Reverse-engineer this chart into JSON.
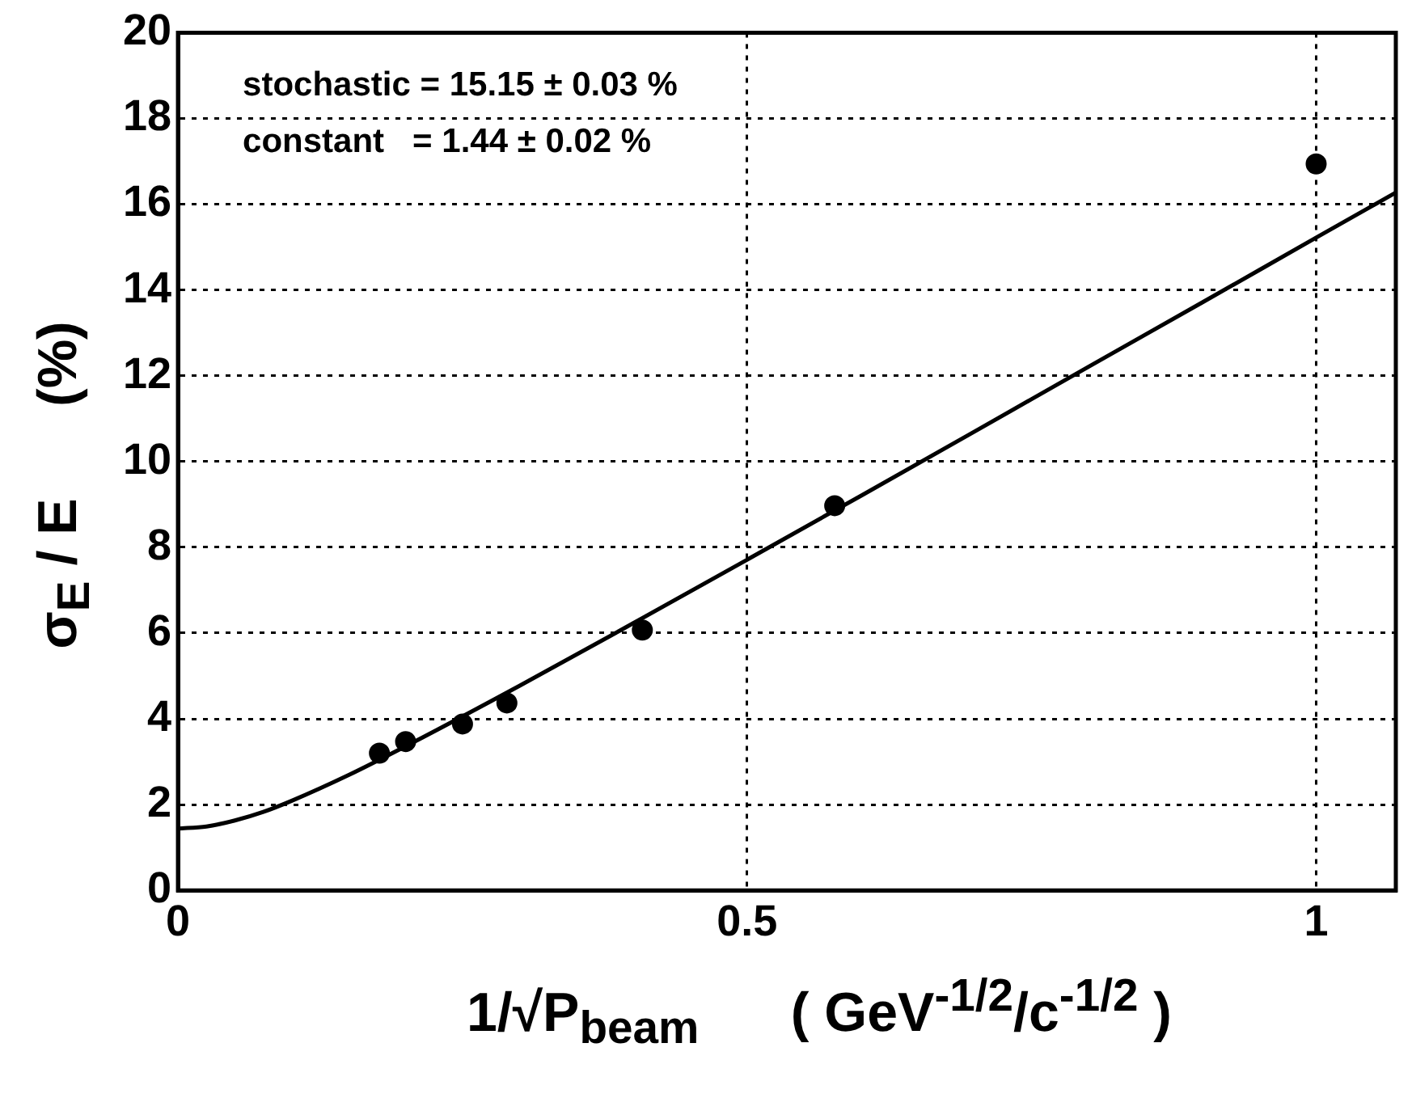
{
  "chart_data": {
    "type": "scatter",
    "xlabel": "1/√P$_{beam}$      ( GeV$^{-1/2}$/c$^{-1/2}$ )",
    "ylabel": "σ$_{E}$ / E      (%)",
    "annotations": [
      "stochastic = 15.15 ± 0.03 %",
      "constant   = 1.44 ± 0.02 %"
    ],
    "xlim": [
      0,
      1.07
    ],
    "xticks": [
      0,
      0.5,
      1
    ],
    "ylim": [
      0,
      20
    ],
    "yticks": [
      0,
      2,
      4,
      6,
      8,
      10,
      12,
      14,
      16,
      18,
      20
    ],
    "grid": true,
    "legend": false,
    "series": [
      {
        "color": "#000000",
        "marker": "circle",
        "x": [
          0.177,
          0.2,
          0.25,
          0.289,
          0.408,
          0.577,
          1
        ],
        "values": [
          3.2,
          3.47,
          3.88,
          4.37,
          6.07,
          8.97,
          16.94
        ]
      },
      {
        "type": "line",
        "color": "#000000",
        "marker": "none",
        "line_style": "solid",
        "x": [
          0,
          0.025,
          0.05,
          0.075,
          0.1,
          0.15,
          0.2,
          0.3,
          0.4,
          0.5,
          0.6,
          0.7,
          0.8,
          0.9,
          1,
          1.07
        ],
        "values": [
          1.44,
          1.49,
          1.63,
          1.83,
          2.09,
          2.69,
          3.36,
          4.77,
          6.23,
          7.71,
          9.2,
          10.7,
          12.21,
          13.71,
          15.22,
          16.27
        ]
      }
    ]
  }
}
